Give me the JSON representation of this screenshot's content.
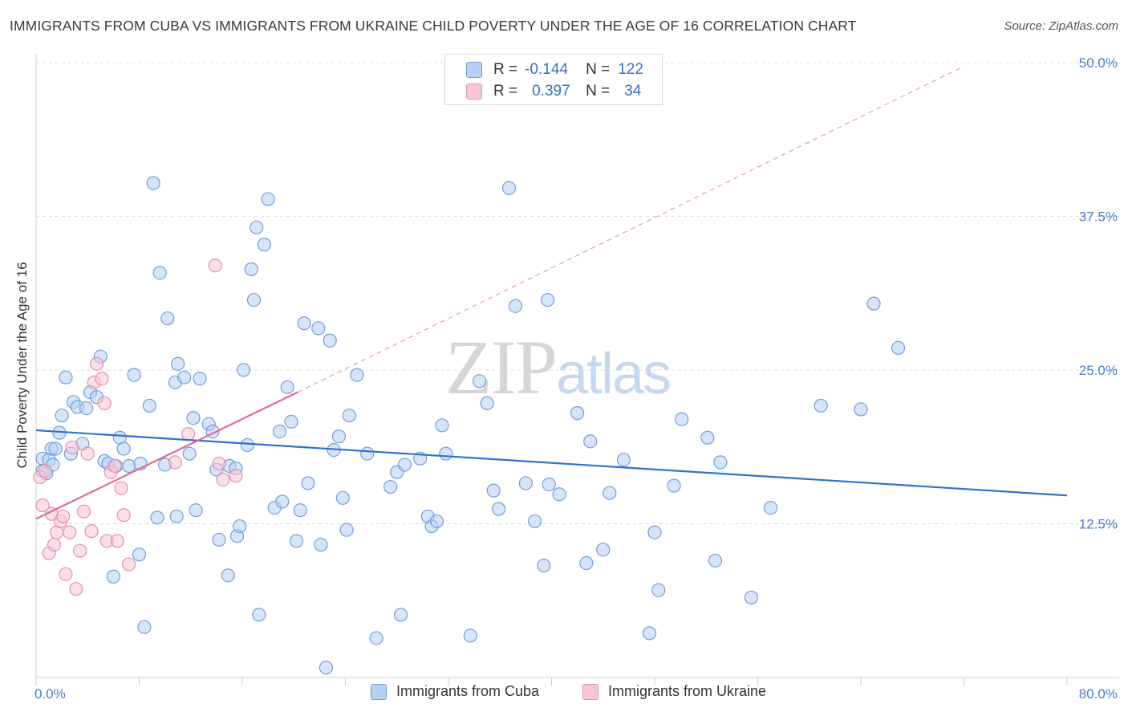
{
  "title": "IMMIGRANTS FROM CUBA VS IMMIGRANTS FROM UKRAINE CHILD POVERTY UNDER THE AGE OF 16 CORRELATION CHART",
  "source": "Source: ZipAtlas.com",
  "watermark": {
    "zip": "ZIP",
    "atlas": "atlas"
  },
  "legend": {
    "r_label": "R =",
    "n_label": "N =",
    "cuba": {
      "r": "-0.144",
      "n": "122"
    },
    "ukraine": {
      "r": "0.397",
      "n": "34"
    }
  },
  "colors": {
    "cuba_fill": "#b8d0f2",
    "cuba_stroke": "#6f9fdc",
    "cuba_line": "#2f72cc",
    "ukraine_fill": "#f7c6d5",
    "ukraine_stroke": "#e88eac",
    "ukraine_line": "#e06a92",
    "tick_text": "#4a7cc8",
    "grid": "#dcdcdc"
  },
  "chart_data": {
    "type": "scatter",
    "title": "IMMIGRANTS FROM CUBA VS IMMIGRANTS FROM UKRAINE CHILD POVERTY UNDER THE AGE OF 16 CORRELATION CHART",
    "xlabel": "",
    "ylabel": "Child Poverty Under the Age of 16",
    "xlim": [
      0,
      80
    ],
    "ylim": [
      0,
      50
    ],
    "x_tick_labels": [
      "0.0%",
      "80.0%"
    ],
    "y_ticks": [
      12.5,
      25.0,
      37.5,
      50.0
    ],
    "y_tick_labels": [
      "12.5%",
      "25.0%",
      "37.5%",
      "50.0%"
    ],
    "grid": "horizontal dashed",
    "legend_position": "top-center",
    "series": [
      {
        "name": "Immigrants from Cuba",
        "points": [
          [
            0.5,
            17.8
          ],
          [
            0.5,
            16.8
          ],
          [
            0.8,
            16.6
          ],
          [
            1.0,
            17.7
          ],
          [
            1.2,
            18.6
          ],
          [
            1.5,
            18.6
          ],
          [
            1.3,
            17.3
          ],
          [
            1.8,
            19.9
          ],
          [
            2.0,
            21.3
          ],
          [
            2.3,
            24.4
          ],
          [
            2.7,
            18.2
          ],
          [
            2.9,
            22.4
          ],
          [
            3.2,
            22.0
          ],
          [
            3.6,
            19.0
          ],
          [
            3.9,
            21.9
          ],
          [
            4.2,
            23.2
          ],
          [
            4.7,
            22.8
          ],
          [
            5.0,
            26.1
          ],
          [
            5.3,
            17.6
          ],
          [
            5.6,
            17.4
          ],
          [
            6.2,
            17.2
          ],
          [
            6.0,
            8.2
          ],
          [
            6.5,
            19.5
          ],
          [
            6.8,
            18.6
          ],
          [
            7.2,
            17.2
          ],
          [
            7.6,
            24.6
          ],
          [
            8.1,
            17.4
          ],
          [
            8.0,
            10.0
          ],
          [
            8.4,
            4.1
          ],
          [
            8.8,
            22.1
          ],
          [
            9.1,
            40.2
          ],
          [
            9.4,
            13.0
          ],
          [
            9.6,
            32.9
          ],
          [
            10.0,
            17.3
          ],
          [
            10.2,
            29.2
          ],
          [
            10.8,
            24.0
          ],
          [
            10.9,
            13.1
          ],
          [
            11.0,
            25.5
          ],
          [
            11.5,
            24.4
          ],
          [
            11.9,
            18.2
          ],
          [
            12.2,
            21.1
          ],
          [
            12.4,
            13.6
          ],
          [
            12.7,
            24.3
          ],
          [
            13.4,
            20.6
          ],
          [
            13.7,
            20.0
          ],
          [
            14.0,
            16.9
          ],
          [
            14.2,
            11.2
          ],
          [
            14.9,
            8.3
          ],
          [
            15.0,
            17.2
          ],
          [
            15.5,
            17.0
          ],
          [
            15.6,
            11.5
          ],
          [
            15.8,
            12.3
          ],
          [
            16.1,
            25.0
          ],
          [
            16.4,
            18.9
          ],
          [
            16.7,
            33.2
          ],
          [
            16.9,
            30.7
          ],
          [
            17.1,
            36.6
          ],
          [
            17.3,
            5.1
          ],
          [
            17.7,
            35.2
          ],
          [
            18.0,
            38.9
          ],
          [
            18.5,
            13.8
          ],
          [
            18.9,
            20.0
          ],
          [
            19.1,
            14.3
          ],
          [
            19.5,
            23.6
          ],
          [
            19.8,
            20.8
          ],
          [
            20.2,
            11.1
          ],
          [
            20.5,
            13.6
          ],
          [
            20.8,
            28.8
          ],
          [
            21.1,
            15.8
          ],
          [
            21.9,
            28.4
          ],
          [
            22.1,
            10.8
          ],
          [
            22.5,
            0.8
          ],
          [
            22.8,
            27.4
          ],
          [
            23.1,
            18.5
          ],
          [
            23.5,
            19.6
          ],
          [
            23.8,
            14.6
          ],
          [
            24.1,
            12.0
          ],
          [
            24.3,
            21.3
          ],
          [
            24.9,
            24.6
          ],
          [
            25.7,
            18.2
          ],
          [
            26.4,
            3.2
          ],
          [
            27.5,
            15.5
          ],
          [
            28.0,
            16.7
          ],
          [
            28.3,
            5.1
          ],
          [
            28.6,
            17.3
          ],
          [
            29.8,
            17.8
          ],
          [
            30.4,
            13.1
          ],
          [
            30.7,
            12.3
          ],
          [
            31.1,
            12.7
          ],
          [
            31.5,
            20.5
          ],
          [
            31.8,
            18.2
          ],
          [
            33.7,
            3.4
          ],
          [
            34.4,
            24.1
          ],
          [
            35.0,
            22.3
          ],
          [
            35.5,
            15.2
          ],
          [
            35.9,
            13.7
          ],
          [
            36.7,
            39.8
          ],
          [
            37.2,
            30.2
          ],
          [
            38.0,
            15.8
          ],
          [
            38.7,
            12.7
          ],
          [
            39.4,
            9.1
          ],
          [
            39.7,
            30.7
          ],
          [
            39.8,
            15.7
          ],
          [
            40.6,
            14.9
          ],
          [
            42.0,
            21.5
          ],
          [
            42.7,
            9.3
          ],
          [
            43.0,
            19.2
          ],
          [
            44.0,
            10.4
          ],
          [
            44.5,
            15.0
          ],
          [
            45.6,
            17.7
          ],
          [
            48.0,
            11.8
          ],
          [
            48.3,
            7.1
          ],
          [
            47.6,
            3.6
          ],
          [
            49.5,
            15.6
          ],
          [
            50.1,
            21.0
          ],
          [
            52.1,
            19.5
          ],
          [
            52.7,
            9.5
          ],
          [
            53.1,
            17.5
          ],
          [
            55.5,
            6.5
          ],
          [
            57.0,
            13.8
          ],
          [
            60.9,
            22.1
          ],
          [
            64.0,
            21.8
          ],
          [
            65.0,
            30.4
          ],
          [
            66.9,
            26.8
          ]
        ],
        "trend": [
          [
            0,
            20.1
          ],
          [
            80,
            14.8
          ]
        ]
      },
      {
        "name": "Immigrants from Ukraine",
        "points": [
          [
            0.3,
            16.3
          ],
          [
            0.5,
            14.0
          ],
          [
            0.7,
            16.8
          ],
          [
            1.0,
            10.1
          ],
          [
            1.2,
            13.3
          ],
          [
            1.4,
            10.8
          ],
          [
            1.6,
            11.8
          ],
          [
            1.9,
            12.7
          ],
          [
            2.1,
            13.1
          ],
          [
            2.3,
            8.4
          ],
          [
            2.6,
            11.8
          ],
          [
            2.8,
            18.7
          ],
          [
            3.1,
            7.2
          ],
          [
            3.4,
            10.3
          ],
          [
            3.7,
            13.5
          ],
          [
            4.0,
            18.2
          ],
          [
            4.3,
            11.9
          ],
          [
            4.5,
            24.0
          ],
          [
            4.7,
            25.5
          ],
          [
            5.1,
            24.3
          ],
          [
            5.3,
            22.3
          ],
          [
            5.5,
            11.1
          ],
          [
            5.8,
            16.7
          ],
          [
            6.1,
            17.2
          ],
          [
            6.3,
            11.1
          ],
          [
            6.6,
            15.4
          ],
          [
            6.8,
            13.2
          ],
          [
            7.2,
            9.2
          ],
          [
            10.8,
            17.5
          ],
          [
            11.8,
            19.8
          ],
          [
            13.9,
            33.5
          ],
          [
            14.2,
            17.4
          ],
          [
            14.5,
            16.1
          ],
          [
            15.5,
            16.4
          ]
        ],
        "trend_solid": [
          [
            0,
            12.9
          ],
          [
            20.3,
            23.2
          ]
        ],
        "trend_dashed": [
          [
            20.3,
            23.2
          ],
          [
            72.0,
            49.7
          ]
        ]
      }
    ]
  },
  "bottom_legend": {
    "cuba": "Immigrants from Cuba",
    "ukraine": "Immigrants from Ukraine"
  }
}
